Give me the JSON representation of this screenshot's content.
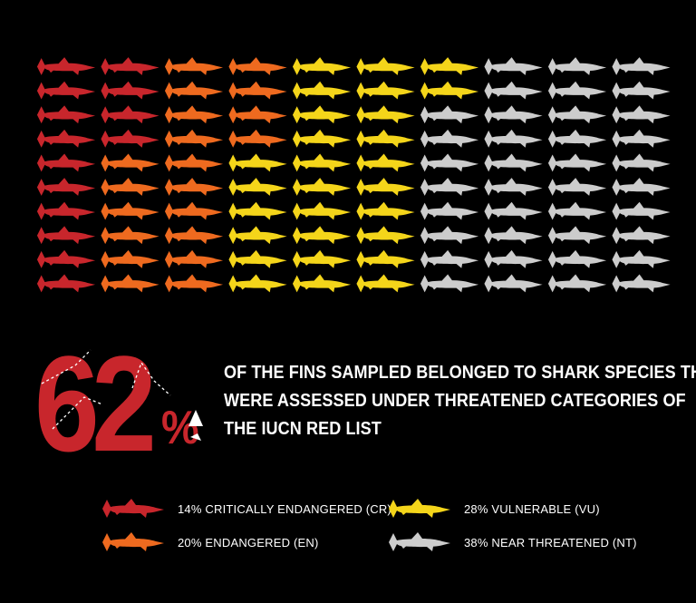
{
  "headline": {
    "big_number": "62",
    "percent_sign": "%",
    "lines": [
      "OF THE FINS SAMPLED BELONGED TO SHARK SPECIES THAT",
      "WERE ASSESSED UNDER THREATENED CATEGORIES OF",
      "THE IUCN RED LIST"
    ]
  },
  "chart_data": {
    "type": "pictogram",
    "title": "",
    "unit_count": 100,
    "grid": {
      "columns": 10,
      "rows": 10,
      "fill_order": "column-major"
    },
    "series": [
      {
        "name": "14% CRITICALLY ENDANGERED (CR)",
        "value": 14,
        "color": "#c8262c"
      },
      {
        "name": "20% ENDANGERED (EN)",
        "value": 20,
        "color": "#ee6a1f"
      },
      {
        "name": "28% VULNERABLE (VU)",
        "value": 28,
        "color": "#f4d51a"
      },
      {
        "name": "38% NEAR THREATENED (NT)",
        "value": 38,
        "color": "#cccccc"
      }
    ],
    "legend_placement": "bottom"
  },
  "icons": {
    "unit": "shark-icon"
  },
  "colors": {
    "background": "#000000",
    "text": "#ffffff",
    "accent": "#c8262c"
  }
}
